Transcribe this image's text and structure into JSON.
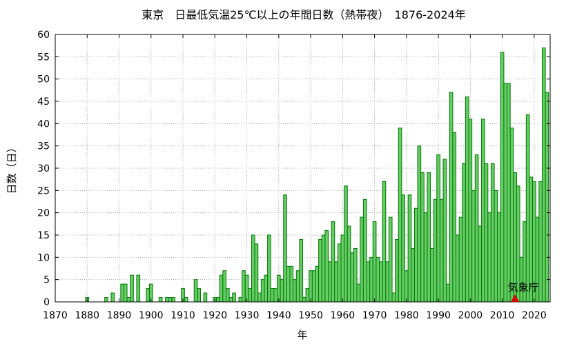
{
  "chart_data": {
    "type": "bar",
    "title": "東京　日最低気温25℃以上の年間日数（熱帯夜）　1876-2024年",
    "xlabel": "年",
    "ylabel": "日数（日）",
    "xlim": [
      1870,
      2025
    ],
    "ylim": [
      0,
      60
    ],
    "xticks": [
      "1870",
      "1880",
      "1890",
      "1900",
      "1910",
      "1920",
      "1930",
      "1940",
      "1950",
      "1960",
      "1970",
      "1980",
      "1990",
      "2000",
      "2010",
      "2020"
    ],
    "yticks": [
      "0",
      "5",
      "10",
      "15",
      "20",
      "25",
      "30",
      "35",
      "40",
      "45",
      "50",
      "55",
      "60"
    ],
    "grid": true,
    "bar_color": "#66cc66",
    "bar_edge": "#007700",
    "marker": {
      "label": "気象庁",
      "x": 2014,
      "color": "#dd0000"
    },
    "x": [
      1876,
      1877,
      1878,
      1879,
      1880,
      1881,
      1882,
      1883,
      1884,
      1885,
      1886,
      1887,
      1888,
      1889,
      1890,
      1891,
      1892,
      1893,
      1894,
      1895,
      1896,
      1897,
      1898,
      1899,
      1900,
      1901,
      1902,
      1903,
      1904,
      1905,
      1906,
      1907,
      1908,
      1909,
      1910,
      1911,
      1912,
      1913,
      1914,
      1915,
      1916,
      1917,
      1918,
      1919,
      1920,
      1921,
      1922,
      1923,
      1924,
      1925,
      1926,
      1927,
      1928,
      1929,
      1930,
      1931,
      1932,
      1933,
      1934,
      1935,
      1936,
      1937,
      1938,
      1939,
      1940,
      1941,
      1942,
      1943,
      1944,
      1945,
      1946,
      1947,
      1948,
      1949,
      1950,
      1951,
      1952,
      1953,
      1954,
      1955,
      1956,
      1957,
      1958,
      1959,
      1960,
      1961,
      1962,
      1963,
      1964,
      1965,
      1966,
      1967,
      1968,
      1969,
      1970,
      1971,
      1972,
      1973,
      1974,
      1975,
      1976,
      1977,
      1978,
      1979,
      1980,
      1981,
      1982,
      1983,
      1984,
      1985,
      1986,
      1987,
      1988,
      1989,
      1990,
      1991,
      1992,
      1993,
      1994,
      1995,
      1996,
      1997,
      1998,
      1999,
      2000,
      2001,
      2002,
      2003,
      2004,
      2005,
      2006,
      2007,
      2008,
      2009,
      2010,
      2011,
      2012,
      2013,
      2014,
      2015,
      2016,
      2017,
      2018,
      2019,
      2020,
      2021,
      2022,
      2023,
      2024
    ],
    "values": [
      0,
      0,
      0,
      0,
      1,
      0,
      0,
      0,
      0,
      0,
      1,
      0,
      2,
      0,
      0,
      4,
      4,
      1,
      6,
      0,
      6,
      0,
      0,
      3,
      4,
      0,
      0,
      1,
      0,
      1,
      1,
      1,
      0,
      0,
      3,
      1,
      0,
      0,
      5,
      3,
      0,
      2,
      0,
      0,
      1,
      1,
      6,
      7,
      3,
      1,
      2,
      0,
      1,
      7,
      6,
      3,
      15,
      13,
      2,
      5,
      6,
      15,
      3,
      3,
      6,
      5,
      24,
      8,
      8,
      5,
      7,
      14,
      1,
      3,
      7,
      7,
      8,
      14,
      15,
      16,
      9,
      18,
      9,
      13,
      15,
      26,
      17,
      11,
      12,
      4,
      19,
      23,
      9,
      10,
      18,
      10,
      9,
      27,
      9,
      19,
      2,
      14,
      39,
      24,
      7,
      24,
      12,
      21,
      35,
      29,
      20,
      29,
      12,
      23,
      33,
      23,
      32,
      4,
      47,
      38,
      15,
      19,
      31,
      46,
      41,
      25,
      33,
      17,
      41,
      31,
      20,
      31,
      25,
      20,
      56,
      49,
      49,
      39,
      29,
      26,
      10,
      18,
      42,
      28,
      27,
      19,
      27,
      57,
      47
    ]
  }
}
